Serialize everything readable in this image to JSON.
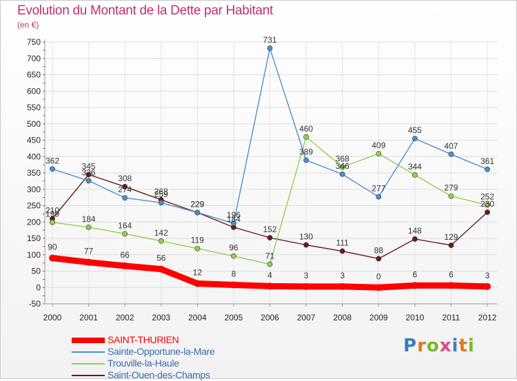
{
  "title": "Evolution du Montant de la Dette par Habitant",
  "unit": "(en €)",
  "logo": {
    "text": "Proxiti",
    "colors": [
      "#3a7ec0",
      "#e07820",
      "#78b82a",
      "#d84a8a",
      "#3a7ec0",
      "#e07820",
      "#78b82a"
    ]
  },
  "chart_data": {
    "type": "line",
    "title": "Evolution du Montant de la Dette par Habitant",
    "ylabel": "(en €)",
    "xlabel": "",
    "x": [
      "2000",
      "2001",
      "2002",
      "2003",
      "2004",
      "2005",
      "2006",
      "2007",
      "2008",
      "2009",
      "2010",
      "2011",
      "2012"
    ],
    "ylim": [
      -50,
      750
    ],
    "yticks": [
      -50,
      0,
      50,
      100,
      150,
      200,
      250,
      300,
      350,
      400,
      450,
      500,
      550,
      600,
      650,
      700,
      750
    ],
    "grid": true,
    "legend": "bottom-left",
    "series": [
      {
        "name": "SAINT-THURIEN",
        "color": "#ff0000",
        "values": [
          90,
          77,
          66,
          56,
          12,
          8,
          4,
          3,
          3,
          0,
          6,
          6,
          3
        ],
        "labels": [
          "90",
          "77",
          "66",
          "56",
          "12",
          "8",
          "4",
          "3",
          "3",
          "0",
          "6",
          "6",
          "3"
        ]
      },
      {
        "name": "Sainte-Opportune-la-Mare",
        "color": "#4a90d0",
        "values": [
          362,
          326,
          274,
          259,
          229,
          196,
          731,
          389,
          346,
          277,
          455,
          407,
          361
        ],
        "labels": [
          "362",
          "326",
          "274",
          "259",
          "229",
          "196",
          "731",
          "389",
          "346",
          "277",
          "455",
          "407",
          "361"
        ]
      },
      {
        "name": "Trouville-la-Haule",
        "color": "#90d050",
        "values": [
          199,
          184,
          164,
          142,
          119,
          96,
          71,
          460,
          368,
          409,
          344,
          279,
          252
        ],
        "labels": [
          "199",
          "184",
          "164",
          "142",
          "119",
          "96",
          "71",
          "460",
          "368",
          "409",
          "344",
          "279",
          "252"
        ]
      },
      {
        "name": "Saint-Ouen-des-Champs",
        "color": "#6a1a1a",
        "values": [
          210,
          345,
          308,
          268,
          229,
          184,
          152,
          130,
          111,
          88,
          148,
          129,
          230
        ],
        "labels": [
          "210",
          "345",
          "308",
          "268",
          "229",
          "184",
          "152",
          "130",
          "111",
          "88",
          "148",
          "129",
          "230"
        ]
      }
    ]
  }
}
